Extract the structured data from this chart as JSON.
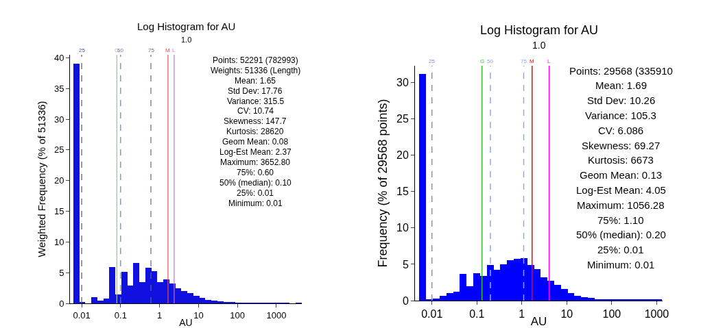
{
  "chart_data": [
    {
      "type": "histogram",
      "title": "Log Histogram for AU",
      "subtitle": "1.0",
      "xlabel": "AU",
      "ylabel": "Weighted Frequency (% of 51336)",
      "log": "x",
      "color": "#1010e0",
      "bins": [
        0.00607,
        0.00866,
        0.01235,
        0.01762,
        0.02513,
        0.03585,
        0.05114,
        0.073,
        0.1041,
        0.1485,
        0.2118,
        0.3021,
        0.431,
        0.6149,
        0.877,
        1.252,
        1.785,
        2.547,
        3.634,
        5.184,
        7.396,
        10.55,
        15.05,
        21.47,
        30.63,
        43.7,
        62.34,
        88.94,
        126.9,
        181.0,
        258.2,
        368.4,
        525.6,
        749.8,
        1070,
        1526,
        2177,
        3105,
        4430
      ],
      "values": [
        39.1,
        0.2,
        0,
        1.0,
        0.5,
        0.8,
        5.9,
        1.5,
        5.1,
        2.9,
        6.6,
        3.5,
        5.8,
        5.3,
        3.5,
        3.9,
        3.2,
        2.4,
        2.0,
        1.7,
        1.2,
        0.9,
        0.6,
        0.5,
        0.3,
        0.2,
        0.2,
        0.1,
        0.1,
        0.1,
        0.1,
        0.1,
        0.1,
        0.1,
        0.1,
        0.1,
        0,
        0.1
      ],
      "xlim": [
        0.005,
        4500
      ],
      "xticks": [
        0.01,
        0.1,
        1,
        10,
        100,
        1000
      ],
      "ylim": [
        0,
        40.5
      ],
      "yticks": [
        0,
        5,
        10,
        15,
        20,
        25,
        30,
        35,
        40
      ],
      "ref_lines": [
        {
          "axis": "x",
          "value": 0.01,
          "color": "#4a5a90",
          "line_style": "dashed"
        },
        {
          "axis": "x",
          "value": 0.08,
          "color": "#a8b8a8",
          "line_style": "solid"
        },
        {
          "axis": "x",
          "value": 0.1,
          "color": "#6a7fb0",
          "line_style": "dashed"
        },
        {
          "axis": "x",
          "value": 0.6,
          "color": "#5a6a90",
          "line_style": "dashed"
        },
        {
          "axis": "x",
          "value": 1.65,
          "color": "#e05050",
          "line_style": "solid"
        },
        {
          "axis": "x",
          "value": 2.37,
          "color": "#d070d0",
          "line_style": "solid"
        }
      ],
      "annotations": [
        {
          "text": "25",
          "x": 0.01,
          "y": 40.5
        },
        {
          "text": "G",
          "x": 0.08,
          "y": 40.5
        },
        {
          "text": "50",
          "x": 0.1,
          "y": 40.5
        },
        {
          "text": "75",
          "x": 0.6,
          "y": 40.5
        },
        {
          "text": "M",
          "x": 1.65,
          "y": 40.5
        },
        {
          "text": "L",
          "x": 2.37,
          "y": 40.5
        },
        "Points: 52291 (782993)",
        "Weights: 51336 (Length)",
        "Mean: 1.65",
        "Std Dev: 17.76",
        "Variance: 315.5",
        "CV: 10.74",
        "Skewness: 147.7",
        "Kurtosis: 28620",
        "Geom Mean: 0.08",
        "Log-Est Mean: 2.37",
        "Maximum: 3652.80",
        "75%: 0.60",
        "50% (median): 0.10",
        "25%: 0.01",
        "Minimum: 0.01"
      ]
    },
    {
      "type": "histogram",
      "title": "Log Histogram for AU",
      "subtitle": "1.0",
      "xlabel": "AU",
      "ylabel": "Frequency (% of 29568 points)",
      "log": "x",
      "color": "#0000ff",
      "bins": [
        0.00525,
        0.00741,
        0.01047,
        0.01479,
        0.02089,
        0.02951,
        0.04169,
        0.05888,
        0.08318,
        0.1175,
        0.166,
        0.2344,
        0.3311,
        0.4677,
        0.6607,
        0.9333,
        1.318,
        1.862,
        2.63,
        3.715,
        5.248,
        7.413,
        10.47,
        14.79,
        20.89,
        29.51,
        41.69,
        58.88,
        83.18,
        117.5,
        166.0,
        234.4,
        331.1,
        467.7,
        660.7,
        933.3,
        1318
      ],
      "values": [
        31.2,
        0.2,
        0.3,
        0.7,
        1.0,
        1.2,
        3.7,
        2.0,
        3.8,
        3.4,
        4.9,
        4.2,
        5.0,
        5.6,
        5.7,
        5.8,
        4.9,
        4.3,
        3.2,
        2.7,
        2.2,
        1.6,
        1.0,
        0.7,
        0.5,
        0.4,
        0.2,
        0.2,
        0.1,
        0.1,
        0.1,
        0.1,
        0.1,
        0.1,
        0.1,
        0.1
      ],
      "xlim": [
        0.0042,
        1350
      ],
      "xticks": [
        0.01,
        0.1,
        1,
        10,
        100,
        1000
      ],
      "ylim": [
        0,
        32.3
      ],
      "yticks": [
        0,
        5,
        10,
        15,
        20,
        25,
        30
      ],
      "ref_lines": [
        {
          "axis": "x",
          "value": 0.01,
          "color": "#8090c0",
          "line_style": "dashed"
        },
        {
          "axis": "x",
          "value": 0.13,
          "color": "#30c030",
          "line_style": "solid"
        },
        {
          "axis": "x",
          "value": 0.2,
          "color": "#8fa8ef",
          "line_style": "dashed"
        },
        {
          "axis": "x",
          "value": 1.1,
          "color": "#8fa8ef",
          "line_style": "dashed"
        },
        {
          "axis": "x",
          "value": 1.69,
          "color": "#ff0000",
          "line_style": "solid"
        },
        {
          "axis": "x",
          "value": 4.05,
          "color": "#ff00ff",
          "line_style": "solid"
        }
      ],
      "annotations": [
        {
          "text": "25",
          "x": 0.01,
          "y": 32.3
        },
        {
          "text": "G",
          "x": 0.13,
          "y": 32.3
        },
        {
          "text": "50",
          "x": 0.2,
          "y": 32.3
        },
        {
          "text": "75",
          "x": 1.1,
          "y": 32.3
        },
        {
          "text": "M",
          "x": 1.69,
          "y": 32.3
        },
        {
          "text": "L",
          "x": 4.05,
          "y": 32.3
        },
        "Points: 29568 (335910",
        "Mean: 1.69",
        "Std Dev: 10.26",
        "Variance: 105.3",
        "CV: 6.086",
        "Skewness: 69.27",
        "Kurtosis: 6673",
        "Geom Mean: 0.13",
        "Log-Est Mean: 4.05",
        "Maximum: 1056.28",
        "75%: 1.10",
        "50% (median): 0.20",
        "25%: 0.01",
        "Minimum: 0.01"
      ]
    }
  ]
}
